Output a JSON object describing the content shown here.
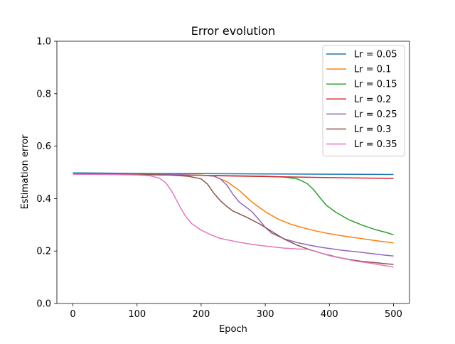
{
  "chart_data": {
    "type": "line",
    "title": "Error evolution",
    "xlabel": "Epoch",
    "ylabel": "Estimation error",
    "xlim": [
      -25,
      525
    ],
    "ylim": [
      0,
      1
    ],
    "x_ticks": [
      0,
      100,
      200,
      300,
      400,
      500
    ],
    "y_ticks": [
      0.0,
      0.2,
      0.4,
      0.6,
      0.8,
      1.0
    ],
    "x_tick_labels": [
      "0",
      "100",
      "200",
      "300",
      "400",
      "500"
    ],
    "y_tick_labels": [
      "0.0",
      "0.2",
      "0.4",
      "0.6",
      "0.8",
      "1.0"
    ],
    "grid": false,
    "legend_position": "top-right",
    "series": [
      {
        "name": "Lr = 0.05",
        "color": "#1f77b4",
        "points": [
          [
            0,
            0.498
          ],
          [
            100,
            0.496
          ],
          [
            200,
            0.495
          ],
          [
            300,
            0.494
          ],
          [
            400,
            0.493
          ],
          [
            500,
            0.492
          ]
        ]
      },
      {
        "name": "Lr = 0.1",
        "color": "#ff7f0e",
        "points": [
          [
            0,
            0.494
          ],
          [
            100,
            0.493
          ],
          [
            150,
            0.492
          ],
          [
            200,
            0.49
          ],
          [
            220,
            0.485
          ],
          [
            240,
            0.465
          ],
          [
            260,
            0.43
          ],
          [
            280,
            0.385
          ],
          [
            300,
            0.35
          ],
          [
            320,
            0.322
          ],
          [
            340,
            0.302
          ],
          [
            360,
            0.288
          ],
          [
            380,
            0.276
          ],
          [
            400,
            0.266
          ],
          [
            420,
            0.258
          ],
          [
            440,
            0.251
          ],
          [
            460,
            0.244
          ],
          [
            480,
            0.237
          ],
          [
            500,
            0.231
          ]
        ]
      },
      {
        "name": "Lr = 0.15",
        "color": "#2ca02c",
        "points": [
          [
            0,
            0.494
          ],
          [
            100,
            0.492
          ],
          [
            200,
            0.489
          ],
          [
            300,
            0.485
          ],
          [
            330,
            0.482
          ],
          [
            350,
            0.475
          ],
          [
            365,
            0.458
          ],
          [
            375,
            0.435
          ],
          [
            385,
            0.405
          ],
          [
            395,
            0.375
          ],
          [
            410,
            0.348
          ],
          [
            430,
            0.32
          ],
          [
            450,
            0.3
          ],
          [
            470,
            0.283
          ],
          [
            490,
            0.27
          ],
          [
            500,
            0.262
          ]
        ]
      },
      {
        "name": "Lr = 0.2",
        "color": "#d62728",
        "points": [
          [
            0,
            0.494
          ],
          [
            100,
            0.492
          ],
          [
            200,
            0.488
          ],
          [
            300,
            0.484
          ],
          [
            400,
            0.48
          ],
          [
            500,
            0.477
          ]
        ]
      },
      {
        "name": "Lr = 0.25",
        "color": "#9467bd",
        "points": [
          [
            0,
            0.494
          ],
          [
            100,
            0.493
          ],
          [
            150,
            0.492
          ],
          [
            200,
            0.489
          ],
          [
            220,
            0.486
          ],
          [
            230,
            0.475
          ],
          [
            240,
            0.452
          ],
          [
            250,
            0.415
          ],
          [
            260,
            0.385
          ],
          [
            270,
            0.368
          ],
          [
            280,
            0.348
          ],
          [
            290,
            0.32
          ],
          [
            300,
            0.29
          ],
          [
            310,
            0.268
          ],
          [
            330,
            0.246
          ],
          [
            350,
            0.232
          ],
          [
            370,
            0.222
          ],
          [
            390,
            0.213
          ],
          [
            420,
            0.203
          ],
          [
            450,
            0.195
          ],
          [
            480,
            0.186
          ],
          [
            500,
            0.181
          ]
        ]
      },
      {
        "name": "Lr = 0.3",
        "color": "#8c564b",
        "points": [
          [
            0,
            0.494
          ],
          [
            100,
            0.492
          ],
          [
            150,
            0.49
          ],
          [
            180,
            0.485
          ],
          [
            200,
            0.475
          ],
          [
            210,
            0.455
          ],
          [
            220,
            0.42
          ],
          [
            230,
            0.392
          ],
          [
            240,
            0.37
          ],
          [
            250,
            0.352
          ],
          [
            270,
            0.33
          ],
          [
            290,
            0.305
          ],
          [
            310,
            0.275
          ],
          [
            330,
            0.245
          ],
          [
            350,
            0.222
          ],
          [
            370,
            0.205
          ],
          [
            390,
            0.19
          ],
          [
            410,
            0.178
          ],
          [
            430,
            0.168
          ],
          [
            450,
            0.161
          ],
          [
            470,
            0.156
          ],
          [
            490,
            0.151
          ],
          [
            500,
            0.149
          ]
        ]
      },
      {
        "name": "Lr = 0.35",
        "color": "#e377c2",
        "points": [
          [
            0,
            0.493
          ],
          [
            50,
            0.492
          ],
          [
            100,
            0.49
          ],
          [
            120,
            0.487
          ],
          [
            135,
            0.478
          ],
          [
            145,
            0.46
          ],
          [
            155,
            0.425
          ],
          [
            165,
            0.378
          ],
          [
            175,
            0.335
          ],
          [
            185,
            0.305
          ],
          [
            200,
            0.28
          ],
          [
            215,
            0.262
          ],
          [
            230,
            0.248
          ],
          [
            250,
            0.238
          ],
          [
            270,
            0.229
          ],
          [
            290,
            0.222
          ],
          [
            310,
            0.216
          ],
          [
            330,
            0.211
          ],
          [
            350,
            0.208
          ],
          [
            365,
            0.207
          ],
          [
            380,
            0.198
          ],
          [
            400,
            0.182
          ],
          [
            420,
            0.172
          ],
          [
            440,
            0.162
          ],
          [
            460,
            0.155
          ],
          [
            480,
            0.147
          ],
          [
            500,
            0.139
          ]
        ]
      }
    ]
  }
}
